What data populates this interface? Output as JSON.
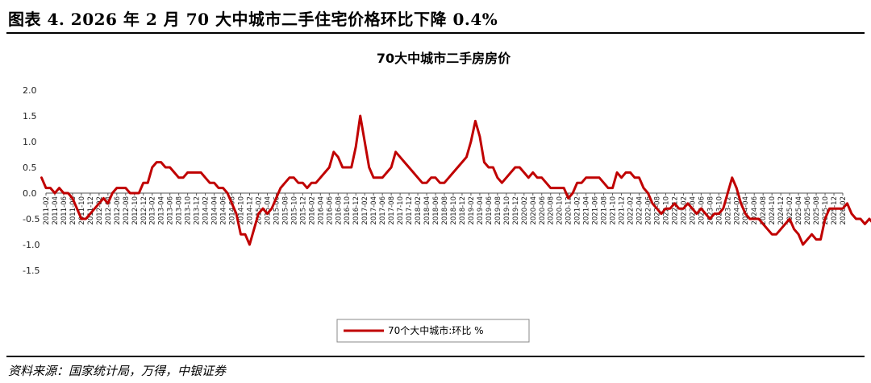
{
  "figure": {
    "title": "图表 4. 2026 年 2 月 70 大中城市二手住宅价格环比下降 0.4%",
    "source": "资料来源：国家统计局，万得，中银证券"
  },
  "chart_data": {
    "type": "line",
    "title": "70大中城市二手房房价",
    "xlabel": "",
    "ylabel": "",
    "ylim": [
      -1.5,
      2.0
    ],
    "yticks": [
      "2.0",
      "1.5",
      "1.0",
      "0.5",
      "0.0",
      "-0.5",
      "-1.0",
      "-1.5"
    ],
    "x_tick_labels": [
      "2011-02",
      "2011-04",
      "2011-06",
      "2011-08",
      "2011-10",
      "2011-12",
      "2012-02",
      "2012-04",
      "2012-06",
      "2012-08",
      "2012-10",
      "2012-12",
      "2013-02",
      "2013-04",
      "2013-06",
      "2013-08",
      "2013-10",
      "2013-12",
      "2014-02",
      "2014-04",
      "2014-06",
      "2014-08",
      "2014-10",
      "2014-12",
      "2015-02",
      "2015-04",
      "2015-06",
      "2015-08",
      "2015-10",
      "2015-12",
      "2016-02",
      "2016-04",
      "2016-06",
      "2016-08",
      "2016-10",
      "2016-12",
      "2017-02",
      "2017-04",
      "2017-06",
      "2017-08",
      "2017-10",
      "2017-12",
      "2018-02",
      "2018-04",
      "2018-06",
      "2018-08",
      "2018-10",
      "2018-12",
      "2019-02",
      "2019-04",
      "2019-06",
      "2019-08",
      "2019-10",
      "2019-12",
      "2020-02",
      "2020-04",
      "2020-06",
      "2020-08",
      "2020-10",
      "2020-12",
      "2021-02",
      "2021-04",
      "2021-06",
      "2021-08",
      "2021-10",
      "2021-12",
      "2022-02",
      "2022-04",
      "2022-06",
      "2022-08",
      "2022-10",
      "2022-12",
      "2023-02",
      "2023-04",
      "2023-06",
      "2023-08",
      "2023-10",
      "2023-12",
      "2024-02",
      "2024-04",
      "2024-06",
      "2024-08",
      "2024-10",
      "2024-12",
      "2025-02",
      "2025-04",
      "2025-06",
      "2025-08",
      "2025-10",
      "2025-12",
      "2026-02"
    ],
    "series": [
      {
        "name": "70个大中城市:环比 %",
        "color": "#c00000",
        "start": "2011-01",
        "values": [
          0.3,
          0.1,
          0.1,
          0.0,
          0.1,
          0.0,
          0.0,
          -0.1,
          -0.3,
          -0.5,
          -0.5,
          -0.4,
          -0.3,
          -0.2,
          -0.1,
          -0.2,
          0.0,
          0.1,
          0.1,
          0.1,
          0.0,
          0.0,
          0.0,
          0.2,
          0.2,
          0.5,
          0.6,
          0.6,
          0.5,
          0.5,
          0.4,
          0.3,
          0.3,
          0.4,
          0.4,
          0.4,
          0.4,
          0.3,
          0.2,
          0.2,
          0.1,
          0.1,
          0.0,
          -0.2,
          -0.4,
          -0.8,
          -0.8,
          -1.0,
          -0.7,
          -0.4,
          -0.3,
          -0.4,
          -0.3,
          -0.1,
          0.1,
          0.2,
          0.3,
          0.3,
          0.2,
          0.2,
          0.1,
          0.2,
          0.2,
          0.3,
          0.4,
          0.5,
          0.8,
          0.7,
          0.5,
          0.5,
          0.5,
          0.9,
          1.5,
          1.0,
          0.5,
          0.3,
          0.3,
          0.3,
          0.4,
          0.5,
          0.8,
          0.7,
          0.6,
          0.5,
          0.4,
          0.3,
          0.2,
          0.2,
          0.3,
          0.3,
          0.2,
          0.2,
          0.3,
          0.4,
          0.5,
          0.6,
          0.7,
          1.0,
          1.4,
          1.1,
          0.6,
          0.5,
          0.5,
          0.3,
          0.2,
          0.3,
          0.4,
          0.5,
          0.5,
          0.4,
          0.3,
          0.4,
          0.3,
          0.3,
          0.2,
          0.1,
          0.1,
          0.1,
          0.1,
          -0.1,
          0.0,
          0.2,
          0.2,
          0.3,
          0.3,
          0.3,
          0.3,
          0.2,
          0.1,
          0.1,
          0.4,
          0.3,
          0.4,
          0.4,
          0.3,
          0.3,
          0.1,
          0.0,
          -0.2,
          -0.3,
          -0.4,
          -0.3,
          -0.3,
          -0.2,
          -0.3,
          -0.3,
          -0.2,
          -0.3,
          -0.4,
          -0.3,
          -0.4,
          -0.5,
          -0.4,
          -0.4,
          -0.3,
          0.0,
          0.3,
          0.1,
          -0.2,
          -0.4,
          -0.5,
          -0.5,
          -0.5,
          -0.6,
          -0.7,
          -0.8,
          -0.8,
          -0.7,
          -0.6,
          -0.5,
          -0.7,
          -0.8,
          -1.0,
          -0.9,
          -0.8,
          -0.9,
          -0.9,
          -0.5,
          -0.3,
          -0.3,
          -0.3,
          -0.3,
          -0.2,
          -0.4,
          -0.5,
          -0.5,
          -0.6,
          -0.5,
          -0.6,
          -0.6,
          -0.7,
          -0.7,
          -0.7,
          -0.6,
          -0.4
        ]
      }
    ],
    "grid": false,
    "legend_position": "bottom-center"
  }
}
